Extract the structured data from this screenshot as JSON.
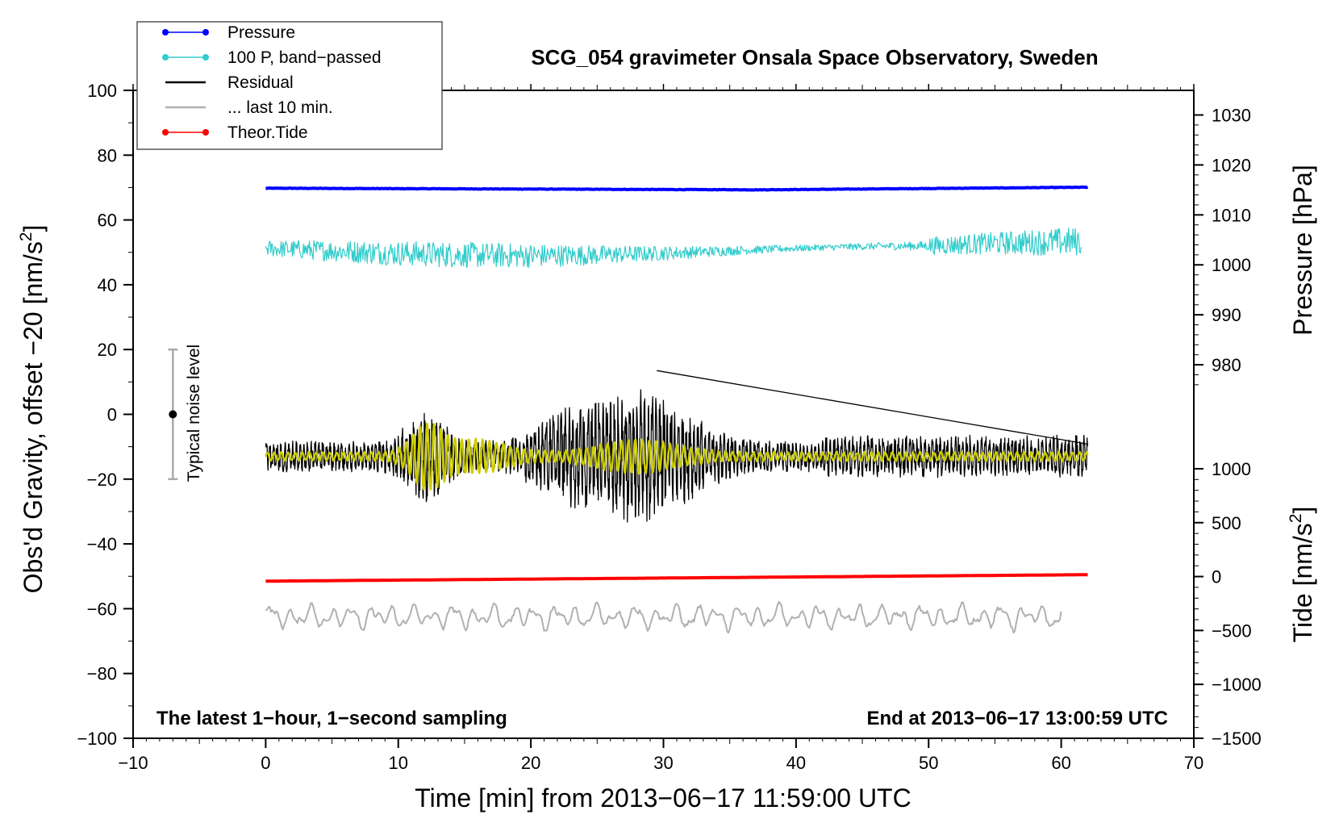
{
  "chart_data": {
    "type": "line",
    "title": "SCG_054 gravimeter Onsala Space Observatory, Sweden",
    "xlabel": "Time [min] from 2013−06−17 11:59:00 UTC",
    "ylabel": "Obs'd Gravity, offset −20 [nm/s",
    "ylabel_sup": "2",
    "ylabel_end": "]",
    "y2label": "Pressure [hPa]",
    "y3label": "Tide [nm/s",
    "y3label_sup": "2",
    "y3label_end": "]",
    "xlim": [
      -10,
      70
    ],
    "ylim": [
      -100,
      100
    ],
    "x_ticks": [
      {
        "v": -10,
        "label": "−10"
      },
      {
        "v": 0,
        "label": "0"
      },
      {
        "v": 10,
        "label": "10"
      },
      {
        "v": 20,
        "label": "20"
      },
      {
        "v": 30,
        "label": "30"
      },
      {
        "v": 40,
        "label": "40"
      },
      {
        "v": 50,
        "label": "50"
      },
      {
        "v": 60,
        "label": "60"
      },
      {
        "v": 70,
        "label": "70"
      }
    ],
    "y_ticks": [
      {
        "v": 100,
        "label": "100"
      },
      {
        "v": 80,
        "label": "80"
      },
      {
        "v": 60,
        "label": "60"
      },
      {
        "v": 40,
        "label": "40"
      },
      {
        "v": 20,
        "label": "20"
      },
      {
        "v": 0,
        "label": "0"
      },
      {
        "v": -20,
        "label": "−20"
      },
      {
        "v": -40,
        "label": "−40"
      },
      {
        "v": -60,
        "label": "−60"
      },
      {
        "v": -80,
        "label": "−80"
      },
      {
        "v": -100,
        "label": "−100"
      }
    ],
    "pressure_axis": {
      "ticks": [
        {
          "v": 1030,
          "label": "1030"
        },
        {
          "v": 1020,
          "label": "1020"
        },
        {
          "v": 1010,
          "label": "1010"
        },
        {
          "v": 1000,
          "label": "1000"
        },
        {
          "v": 990,
          "label": "990"
        },
        {
          "v": 980,
          "label": "980"
        }
      ],
      "map_p": [
        1030,
        980
      ],
      "map_y": [
        92.4,
        15.3
      ]
    },
    "tide_axis": {
      "ticks": [
        {
          "v": 1000,
          "label": "1000"
        },
        {
          "v": 500,
          "label": "500"
        },
        {
          "v": 0,
          "label": "0"
        },
        {
          "v": -500,
          "label": "−500"
        },
        {
          "v": -1000,
          "label": "−1000"
        },
        {
          "v": -1500,
          "label": "−1500"
        }
      ],
      "map_t": [
        1000,
        -1500
      ],
      "map_y": [
        -16.8,
        -100
      ]
    },
    "legend": {
      "placement": "top-left",
      "entries": [
        {
          "label": "Pressure",
          "color": "#0000ff",
          "marker": true
        },
        {
          "label": "100 P, band−passed",
          "color": "#33cccc",
          "marker": true
        },
        {
          "label": "Residual",
          "color": "#000000",
          "marker": false
        },
        {
          "label": "... last 10 min.",
          "color": "#b0b0b0",
          "marker": false
        },
        {
          "label": "Theor.Tide",
          "color": "#ff0000",
          "marker": true
        }
      ]
    },
    "series": [
      {
        "name": "Pressure",
        "color": "#0000ff",
        "x_range": [
          0,
          62
        ],
        "y_start": 69.8,
        "y_mid": 69.3,
        "y_end": 70.1,
        "noise": 0.15
      },
      {
        "name": "100 P, band−passed",
        "color": "#33cccc",
        "x_range": [
          0,
          61.5
        ],
        "y_center": 50.5,
        "amplitude": 2.5
      },
      {
        "name": "Residual",
        "color": "#000000",
        "x_range": [
          0,
          62
        ],
        "y_center": -13,
        "y_peak_max": 13.5,
        "y_peak_min": -35
      },
      {
        "name": "Residual (filtered)",
        "color": "#cccc00",
        "x_range": [
          0,
          62
        ],
        "y_center": -13,
        "y_peak_min": -24,
        "y_peak_max": -4
      },
      {
        "name": "... last 10 min.",
        "color": "#b0b0b0",
        "x_range": [
          0,
          60
        ],
        "y_center": -62.5,
        "amplitude": 4
      },
      {
        "name": "Theor.Tide",
        "color": "#ff0000",
        "x_range": [
          0,
          62
        ],
        "y_start": -51.5,
        "y_end": -49.5
      }
    ],
    "annotations": {
      "noise_label": "Typical noise level",
      "noise_bar": {
        "x": -7,
        "y_low": -20,
        "y_high": 20,
        "y_center": 0
      },
      "bottom_left": "The latest 1−hour, 1−second sampling",
      "bottom_right": "End at 2013−06−17 13:00:59 UTC"
    },
    "grid": false
  }
}
